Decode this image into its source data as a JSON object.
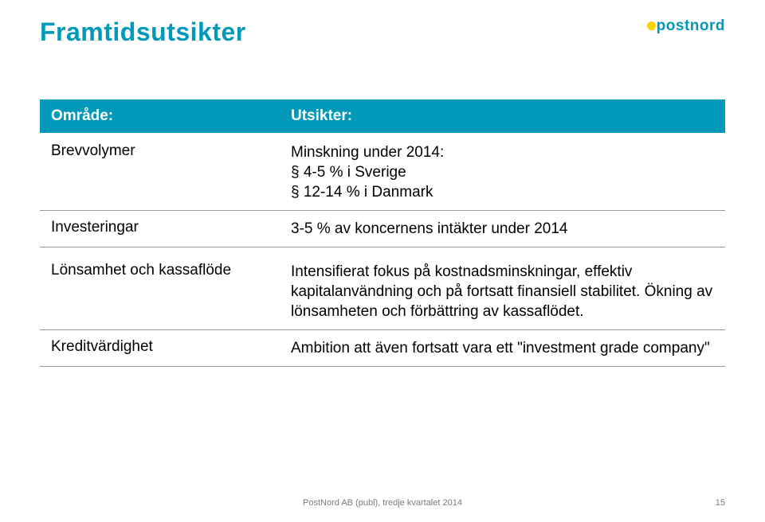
{
  "title": {
    "text": "Framtidsutsikter",
    "color": "#0099b9",
    "fontsize": 32
  },
  "logo": {
    "text": "postnord",
    "color": "#0099b9",
    "dot_color": "#ffd200",
    "fontsize": 19
  },
  "table": {
    "header_bg": "#0099b9",
    "header_fontsize": 19,
    "body_fontsize": 19,
    "border_color": "#9a9a9a",
    "columns": {
      "area": "Område:",
      "outlook": "Utsikter:"
    },
    "rows": [
      {
        "area": "Brevvolymer",
        "outlook": "Minskning under 2014:\n§ 4-5 % i Sverige\n§ 12-14 % i Danmark"
      },
      {
        "area": "Investeringar",
        "outlook": "3-5 % av koncernens intäkter under 2014"
      }
    ],
    "rows2": [
      {
        "area": "Lönsamhet och kassaflöde",
        "outlook": "Intensifierat fokus på kostnadsminskningar, effektiv kapitalanvändning och på fortsatt finansiell stabilitet. Ökning av lönsamheten och förbättring av kassaflödet."
      },
      {
        "area": "Kreditvärdighet",
        "outlook": "Ambition att även fortsatt vara ett \"investment grade company\""
      }
    ]
  },
  "footer": {
    "text": "PostNord AB (publ), tredje kvartalet 2014",
    "fontsize": 11
  },
  "pagenum": {
    "text": "15",
    "fontsize": 11
  }
}
